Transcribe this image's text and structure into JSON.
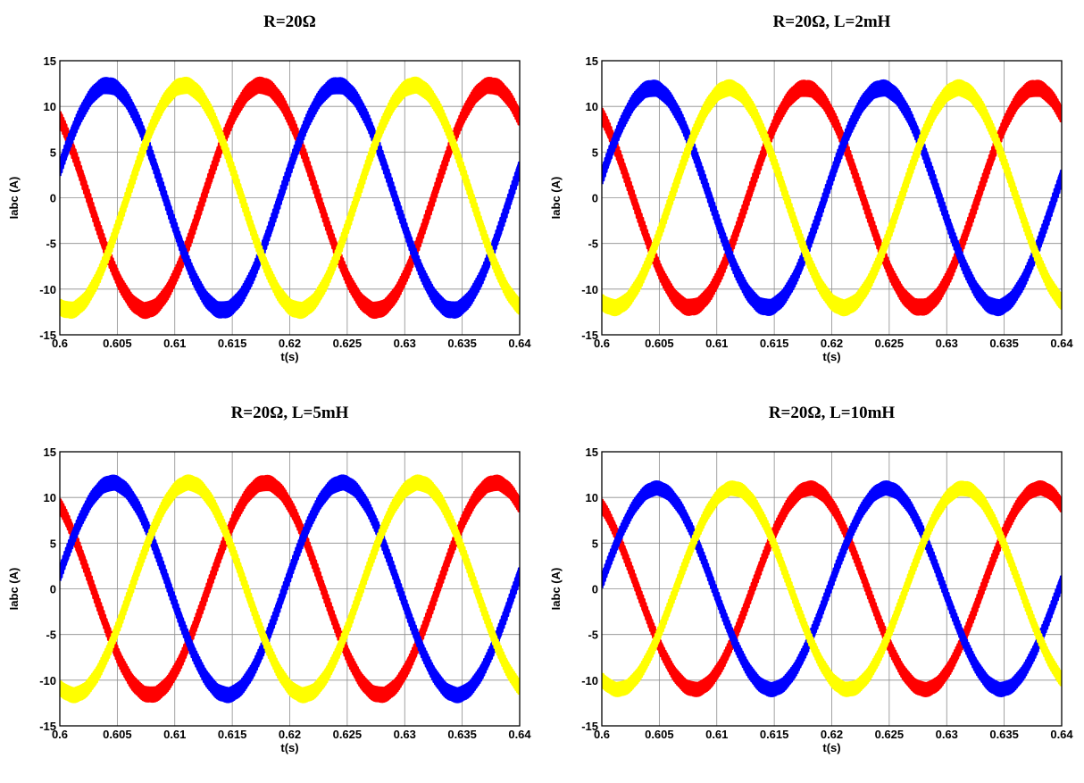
{
  "chart_data": [
    {
      "type": "line",
      "title": "R=20Ω",
      "xlabel": "t(s)",
      "ylabel": "Iabc (A)",
      "xlim": [
        0.6,
        0.64
      ],
      "ylim": [
        -15,
        15
      ],
      "xticks": [
        "0.6",
        "0.605",
        "0.61",
        "0.615",
        "0.62",
        "0.625",
        "0.63",
        "0.635",
        "0.64"
      ],
      "yticks": [
        "-15",
        "-10",
        "-5",
        "0",
        "5",
        "10",
        "15"
      ],
      "grid": true,
      "frequency_hz": 50,
      "ripple_a": 0.8,
      "series": [
        {
          "color": "#ff0000",
          "amplitude": 12.3,
          "phase_deg": 135
        },
        {
          "color": "#0000ff",
          "amplitude": 12.3,
          "phase_deg": 15
        },
        {
          "color": "#ffff00",
          "amplitude": 12.3,
          "phase_deg": -105
        }
      ]
    },
    {
      "type": "line",
      "title": "R=20Ω, L=2mH",
      "xlabel": "t(s)",
      "ylabel": "Iabc (A)",
      "xlim": [
        0.6,
        0.64
      ],
      "ylim": [
        -15,
        15
      ],
      "xticks": [
        "0.6",
        "0.605",
        "0.61",
        "0.615",
        "0.62",
        "0.625",
        "0.63",
        "0.635",
        "0.64"
      ],
      "yticks": [
        "-15",
        "-10",
        "-5",
        "0",
        "5",
        "10",
        "15"
      ],
      "grid": true,
      "frequency_hz": 50,
      "ripple_a": 0.8,
      "series": [
        {
          "color": "#ff0000",
          "amplitude": 12.0,
          "phase_deg": 131
        },
        {
          "color": "#0000ff",
          "amplitude": 12.0,
          "phase_deg": 11
        },
        {
          "color": "#ffff00",
          "amplitude": 12.0,
          "phase_deg": -109
        }
      ]
    },
    {
      "type": "line",
      "title": "R=20Ω, L=5mH",
      "xlabel": "t(s)",
      "ylabel": "Iabc (A)",
      "xlim": [
        0.6,
        0.64
      ],
      "ylim": [
        -15,
        15
      ],
      "xticks": [
        "0.6",
        "0.605",
        "0.61",
        "0.615",
        "0.62",
        "0.625",
        "0.63",
        "0.635",
        "0.64"
      ],
      "yticks": [
        "-15",
        "-10",
        "-5",
        "0",
        "5",
        "10",
        "15"
      ],
      "grid": true,
      "frequency_hz": 50,
      "ripple_a": 0.75,
      "series": [
        {
          "color": "#ff0000",
          "amplitude": 11.6,
          "phase_deg": 128
        },
        {
          "color": "#0000ff",
          "amplitude": 11.6,
          "phase_deg": 8
        },
        {
          "color": "#ffff00",
          "amplitude": 11.6,
          "phase_deg": -112
        }
      ]
    },
    {
      "type": "line",
      "title": "R=20Ω, L=10mH",
      "xlabel": "t(s)",
      "ylabel": "Iabc (A)",
      "xlim": [
        0.6,
        0.64
      ],
      "ylim": [
        -15,
        15
      ],
      "xticks": [
        "0.6",
        "0.605",
        "0.61",
        "0.615",
        "0.62",
        "0.625",
        "0.63",
        "0.635",
        "0.64"
      ],
      "yticks": [
        "-15",
        "-10",
        "-5",
        "0",
        "5",
        "10",
        "15"
      ],
      "grid": true,
      "frequency_hz": 50,
      "ripple_a": 0.7,
      "series": [
        {
          "color": "#ff0000",
          "amplitude": 11.0,
          "phase_deg": 124
        },
        {
          "color": "#0000ff",
          "amplitude": 11.0,
          "phase_deg": 4
        },
        {
          "color": "#ffff00",
          "amplitude": 11.0,
          "phase_deg": -116
        }
      ]
    }
  ]
}
